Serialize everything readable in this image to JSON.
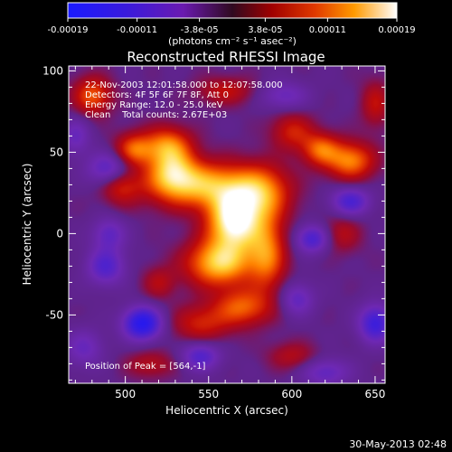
{
  "chart_data": {
    "type": "heatmap",
    "title": "Reconstructed RHESSI Image",
    "xlabel": "Heliocentric X (arcsec)",
    "ylabel": "Heliocentric Y (arcsec)",
    "xlim": [
      466,
      656
    ],
    "ylim": [
      -92,
      103
    ],
    "xticks": [
      500,
      550,
      600,
      650
    ],
    "yticks": [
      -50,
      0,
      50,
      100
    ],
    "colorbar": {
      "label": "(photons cm⁻² s⁻¹ asec⁻²)",
      "range": [
        -0.00019,
        0.00019
      ],
      "ticks": [
        "-0.00019",
        "-0.00011",
        "-3.8e-05",
        "3.8e-05",
        "0.00011",
        "0.00019"
      ]
    },
    "annotations": [
      "22-Nov-2003 12:01:58.000 to 12:07:58.000",
      "Detectors: 4F 5F 6F 7F 8F, Att 0",
      "Energy Range: 12.0 - 25.0 keV",
      "Clean    Total counts: 2.67E+03"
    ],
    "peak_label": "Position of Peak = [564,-1]",
    "peak": [
      564,
      -1
    ],
    "sources": [
      {
        "x": 565,
        "y": 8,
        "amp": 1.0,
        "sx": 11,
        "sy": 13
      },
      {
        "x": 556,
        "y": -18,
        "amp": 0.75,
        "sx": 14,
        "sy": 10
      },
      {
        "x": 545,
        "y": 30,
        "amp": 0.7,
        "sx": 22,
        "sy": 10
      },
      {
        "x": 528,
        "y": 40,
        "amp": 0.55,
        "sx": 10,
        "sy": 10
      },
      {
        "x": 582,
        "y": 25,
        "amp": 0.55,
        "sx": 12,
        "sy": 12
      },
      {
        "x": 585,
        "y": -12,
        "amp": 0.55,
        "sx": 8,
        "sy": 16
      },
      {
        "x": 570,
        "y": -45,
        "amp": 0.5,
        "sx": 12,
        "sy": 8
      },
      {
        "x": 545,
        "y": -55,
        "amp": 0.35,
        "sx": 12,
        "sy": 8
      },
      {
        "x": 525,
        "y": 55,
        "amp": 0.5,
        "sx": 10,
        "sy": 8
      },
      {
        "x": 505,
        "y": 52,
        "amp": 0.5,
        "sx": 8,
        "sy": 7
      },
      {
        "x": 480,
        "y": 85,
        "amp": 0.5,
        "sx": 8,
        "sy": 8
      },
      {
        "x": 635,
        "y": 45,
        "amp": 0.6,
        "sx": 10,
        "sy": 8
      },
      {
        "x": 617,
        "y": 52,
        "amp": 0.5,
        "sx": 8,
        "sy": 7
      },
      {
        "x": 600,
        "y": 63,
        "amp": 0.35,
        "sx": 9,
        "sy": 8
      },
      {
        "x": 497,
        "y": 30,
        "amp": 0.35,
        "sx": 8,
        "sy": 8
      },
      {
        "x": 560,
        "y": 88,
        "amp": 0.3,
        "sx": 12,
        "sy": 6
      },
      {
        "x": 650,
        "y": 80,
        "amp": 0.3,
        "sx": 6,
        "sy": 10
      },
      {
        "x": 520,
        "y": -30,
        "amp": 0.25,
        "sx": 7,
        "sy": 7
      },
      {
        "x": 515,
        "y": -80,
        "amp": 0.25,
        "sx": 10,
        "sy": 6
      },
      {
        "x": 600,
        "y": -75,
        "amp": 0.25,
        "sx": 10,
        "sy": 6
      },
      {
        "x": 630,
        "y": 0,
        "amp": 0.25,
        "sx": 8,
        "sy": 8
      },
      {
        "x": 510,
        "y": -55,
        "amp": -0.8,
        "sx": 8,
        "sy": 7
      },
      {
        "x": 490,
        "y": 40,
        "amp": -0.45,
        "sx": 9,
        "sy": 7
      },
      {
        "x": 650,
        "y": -55,
        "amp": -0.6,
        "sx": 7,
        "sy": 8
      },
      {
        "x": 635,
        "y": 20,
        "amp": -0.5,
        "sx": 8,
        "sy": 6
      },
      {
        "x": 612,
        "y": -3,
        "amp": -0.5,
        "sx": 7,
        "sy": 6
      },
      {
        "x": 545,
        "y": -75,
        "amp": -0.45,
        "sx": 8,
        "sy": 6
      },
      {
        "x": 488,
        "y": -20,
        "amp": -0.45,
        "sx": 8,
        "sy": 8
      },
      {
        "x": 490,
        "y": 0,
        "amp": -0.35,
        "sx": 7,
        "sy": 7
      },
      {
        "x": 603,
        "y": -40,
        "amp": -0.35,
        "sx": 7,
        "sy": 7
      },
      {
        "x": 620,
        "y": -85,
        "amp": -0.35,
        "sx": 10,
        "sy": 6
      },
      {
        "x": 595,
        "y": 85,
        "amp": -0.3,
        "sx": 10,
        "sy": 6
      },
      {
        "x": 475,
        "y": -70,
        "amp": -0.3,
        "sx": 8,
        "sy": 8
      },
      {
        "x": 470,
        "y": 60,
        "amp": -0.3,
        "sx": 6,
        "sy": 8
      }
    ]
  },
  "footer": {
    "date": "30-May-2013 02:48"
  }
}
